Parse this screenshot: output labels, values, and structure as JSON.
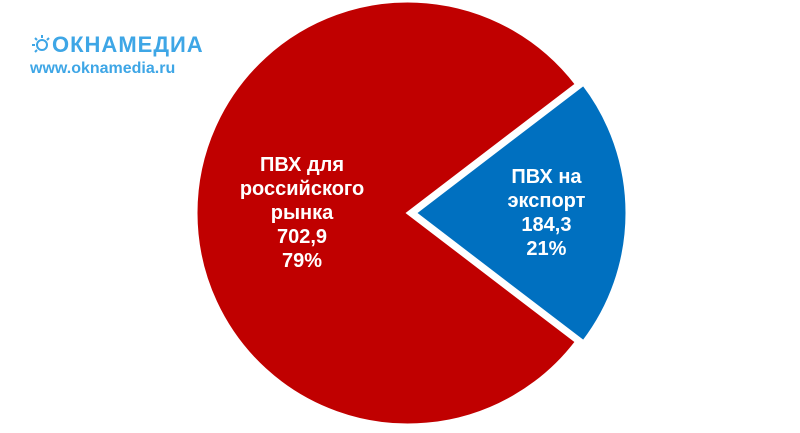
{
  "header": {
    "logo": "ОКНАМЕДИА",
    "url": "www.oknamedia.ru"
  },
  "chart_data": {
    "type": "pie",
    "categories": [
      "ПВХ для российского рынка",
      "ПВХ на экспорт"
    ],
    "values": [
      702.9,
      184.3
    ],
    "value_labels": [
      "702,9",
      "184,3"
    ],
    "percent_labels": [
      "79%",
      "21%"
    ],
    "colors": [
      "#c00000",
      "#0070c0"
    ]
  }
}
